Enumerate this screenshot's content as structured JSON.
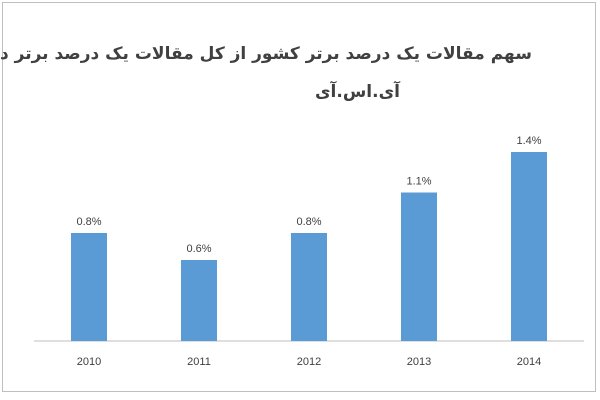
{
  "chart_data": {
    "type": "bar",
    "title": "سهم مقالات یک درصد برتر کشور از کل مقالات یک درصد برتر دنیا",
    "subtitle": "آی.اس.آی",
    "categories": [
      "2010",
      "2011",
      "2012",
      "2013",
      "2014"
    ],
    "values": [
      0.8,
      0.6,
      0.8,
      1.1,
      1.4
    ],
    "value_labels": [
      "0.8%",
      "0.6%",
      "0.8%",
      "1.1%",
      "1.4%"
    ],
    "ylim": [
      0,
      1.6
    ],
    "grid": false,
    "legend": "none",
    "bar_color": "#5b9bd5"
  }
}
